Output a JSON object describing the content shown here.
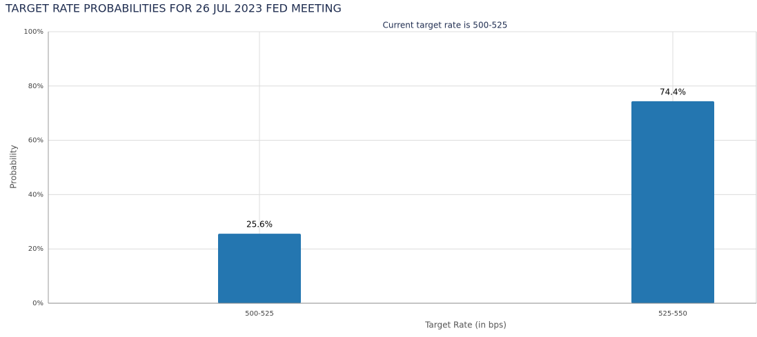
{
  "chart_data": {
    "type": "bar",
    "title": "TARGET RATE PROBABILITIES FOR 26 JUL 2023 FED MEETING",
    "subtitle": "Current target rate is 500-525",
    "x_label": "Target Rate (in bps)",
    "y_label": "Probability",
    "categories": [
      "500-525",
      "525-550"
    ],
    "values": [
      25.6,
      74.4
    ],
    "value_labels": [
      "25.6%",
      "74.4%"
    ],
    "color": "#2476b0",
    "ylim": [
      0,
      100
    ],
    "yticks": [
      {
        "value": 0,
        "label": "0%"
      },
      {
        "value": 20,
        "label": "20%"
      },
      {
        "value": 40,
        "label": "40%"
      },
      {
        "value": 60,
        "label": "60%"
      },
      {
        "value": 80,
        "label": "80%"
      },
      {
        "value": 100,
        "label": "100%"
      }
    ],
    "grid": true
  }
}
